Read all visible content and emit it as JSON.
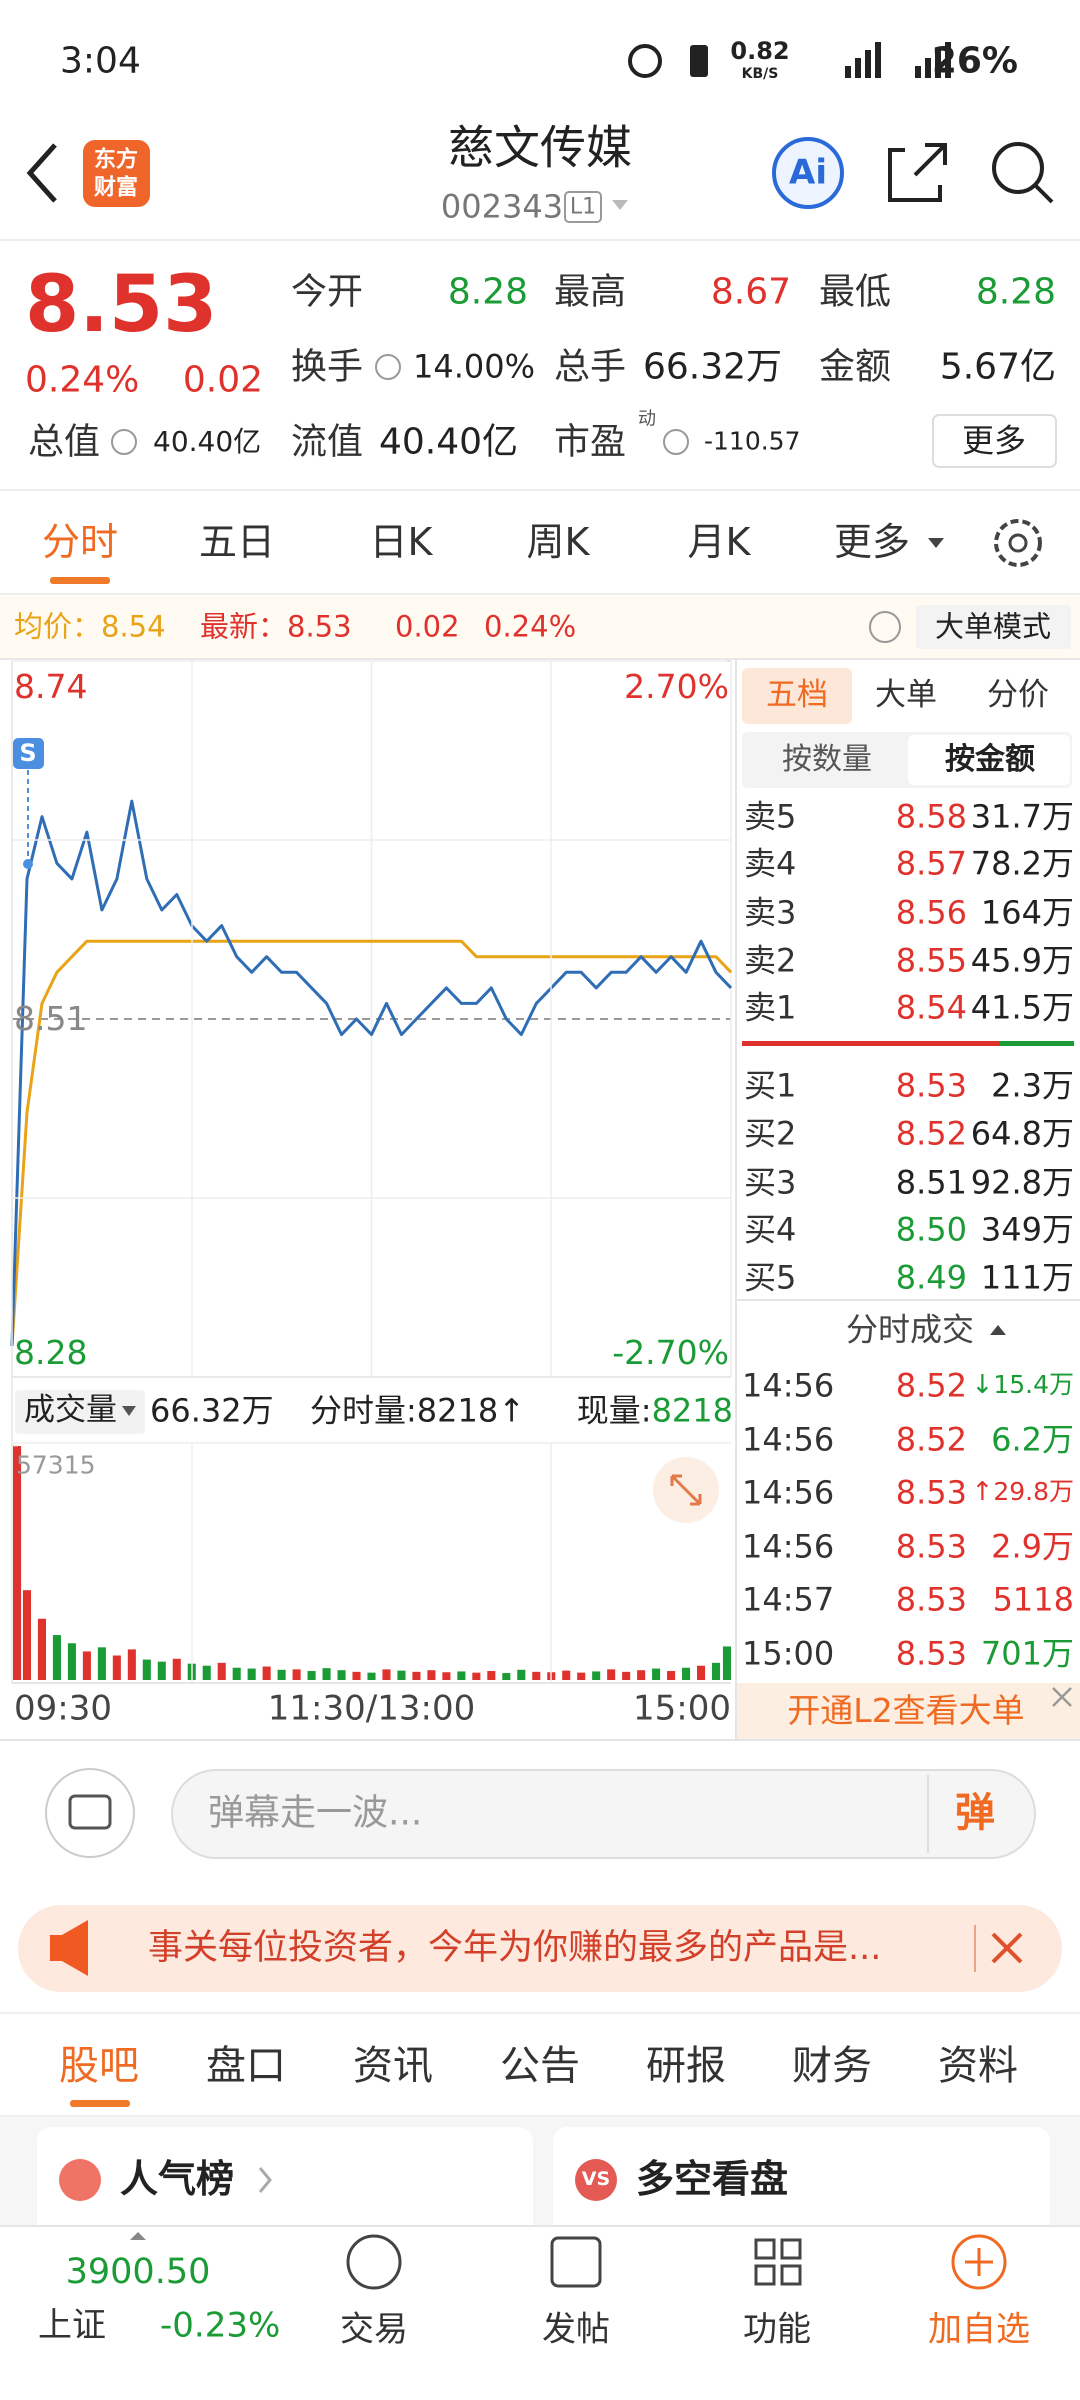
{
  "status": {
    "time": "3:04",
    "net_speed": "0.82",
    "net_unit": "KB/S",
    "battery": "26%"
  },
  "header": {
    "logo": [
      "东方",
      "财富"
    ],
    "title": "慈文传媒",
    "code": "002343",
    "level": "L1",
    "ai": "Ai"
  },
  "quote": {
    "price": "8.53",
    "change_pct": "0.24%",
    "change": "0.02",
    "stats": [
      {
        "label": "今开",
        "value": "8.28"
      },
      {
        "label": "最高",
        "value": "8.67"
      },
      {
        "label": "最低",
        "value": "8.28"
      },
      {
        "label": "换手",
        "value": "14.00%"
      },
      {
        "label": "总手",
        "value": "66.32万"
      },
      {
        "label": "金额",
        "value": "5.67亿"
      },
      {
        "label": "总值",
        "value": "40.40亿"
      },
      {
        "label": "流值",
        "value": "40.40亿"
      },
      {
        "label": "市盈",
        "sup": "动",
        "value": "-110.57"
      }
    ],
    "more": "更多"
  },
  "period_tabs": [
    "分时",
    "五日",
    "日K",
    "周K",
    "月K",
    "更多"
  ],
  "info_bar": {
    "avg_label": "均价：",
    "avg": "8.54",
    "latest_label": "最新：",
    "latest": "8.53",
    "change": "0.02",
    "change_pct": "0.24%",
    "mode": "大单模式"
  },
  "chart_data": [
    {
      "type": "line",
      "annotation": "S",
      "ylim": [
        8.28,
        8.74
      ],
      "yticks": [
        8.28,
        8.51,
        8.74
      ],
      "y2lim": [
        -2.7,
        2.7
      ],
      "y2ticks": [
        {
          "value": -2.7,
          "label": "-2.70%"
        },
        {
          "value": 2.7,
          "label": "2.70%"
        }
      ],
      "xlim": [
        0,
        48
      ],
      "series": [
        {
          "color": "#2f6db5",
          "values": [
            8.3,
            8.6,
            8.64,
            8.61,
            8.6,
            8.63,
            8.58,
            8.6,
            8.65,
            8.6,
            8.58,
            8.59,
            8.57,
            8.56,
            8.57,
            8.55,
            8.54,
            8.55,
            8.54,
            8.54,
            8.53,
            8.52,
            8.5,
            8.51,
            8.5,
            8.52,
            8.5,
            8.51,
            8.52,
            8.53,
            8.52,
            8.52,
            8.53,
            8.51,
            8.5,
            8.52,
            8.53,
            8.54,
            8.54,
            8.53,
            8.54,
            8.54,
            8.55,
            8.54,
            8.55,
            8.54,
            8.56,
            8.54,
            8.53
          ]
        },
        {
          "color": "#e8a317",
          "values": [
            8.3,
            8.45,
            8.52,
            8.54,
            8.55,
            8.56,
            8.56,
            8.56,
            8.56,
            8.56,
            8.56,
            8.56,
            8.56,
            8.56,
            8.56,
            8.56,
            8.56,
            8.56,
            8.56,
            8.56,
            8.56,
            8.56,
            8.56,
            8.56,
            8.56,
            8.56,
            8.56,
            8.56,
            8.56,
            8.56,
            8.56,
            8.55,
            8.55,
            8.55,
            8.55,
            8.55,
            8.55,
            8.55,
            8.55,
            8.55,
            8.55,
            8.55,
            8.55,
            8.55,
            8.55,
            8.55,
            8.55,
            8.55,
            8.54
          ]
        }
      ]
    },
    {
      "type": "bar",
      "ylim": [
        0,
        57315
      ],
      "yticks": [
        57315
      ],
      "xlim": [
        0,
        48
      ],
      "xticks": [
        {
          "value": 0,
          "label": "09:30"
        },
        {
          "value": 24,
          "label": "11:30/13:00"
        },
        {
          "value": 48,
          "label": "15:00"
        }
      ],
      "up_color": "#e0322c",
      "down_color": "#1b9b35",
      "values": [
        57315,
        22000,
        15000,
        11000,
        9000,
        7000,
        8000,
        6000,
        7500,
        5000,
        4500,
        5200,
        4000,
        3500,
        4200,
        3000,
        2800,
        3300,
        2500,
        2600,
        2200,
        2900,
        2400,
        2000,
        1800,
        2600,
        2300,
        2000,
        2400,
        1900,
        2100,
        1800,
        2200,
        1700,
        2500,
        2000,
        1900,
        2300,
        1800,
        2100,
        2600,
        2000,
        2400,
        2800,
        2200,
        3000,
        3500,
        4200,
        8218
      ]
    }
  ],
  "volume_header": {
    "label": "成交量",
    "total": "66.32万",
    "period_label": "分时量:",
    "period_value": "8218",
    "period_arrow": "↑",
    "current_label": "现量:",
    "current_value": "8218"
  },
  "order_book": {
    "tabs": [
      "五档",
      "大单",
      "分价"
    ],
    "sub_tabs": [
      "按数量",
      "按金额"
    ],
    "asks": [
      {
        "label": "卖5",
        "price": "8.58",
        "amount": "31.7万"
      },
      {
        "label": "卖4",
        "price": "8.57",
        "amount": "78.2万"
      },
      {
        "label": "卖3",
        "price": "8.56",
        "amount": "164万"
      },
      {
        "label": "卖2",
        "price": "8.55",
        "amount": "45.9万"
      },
      {
        "label": "卖1",
        "price": "8.54",
        "amount": "41.5万"
      }
    ],
    "bids": [
      {
        "label": "买1",
        "price": "8.53",
        "amount": "2.3万"
      },
      {
        "label": "买2",
        "price": "8.52",
        "amount": "64.8万"
      },
      {
        "label": "买3",
        "price": "8.51",
        "amount": "92.8万"
      },
      {
        "label": "买4",
        "price": "8.50",
        "amount": "349万"
      },
      {
        "label": "买5",
        "price": "8.49",
        "amount": "111万"
      }
    ],
    "trades_title": "分时成交",
    "trades": [
      {
        "time": "14:56",
        "price": "8.52",
        "arrow": "↓",
        "volume": "15.4万",
        "color": "#1b9b35"
      },
      {
        "time": "14:56",
        "price": "8.52",
        "volume": "6.2万",
        "color": "#1b9b35"
      },
      {
        "time": "14:56",
        "price": "8.53",
        "arrow": "↑",
        "volume": "29.8万",
        "color": "#e0322c"
      },
      {
        "time": "14:56",
        "price": "8.53",
        "volume": "2.9万",
        "color": "#e0322c"
      },
      {
        "time": "14:57",
        "price": "8.53",
        "volume": "5118",
        "color": "#e0322c"
      },
      {
        "time": "15:00",
        "price": "8.53",
        "volume": "701万",
        "color": "#1b9b35"
      }
    ],
    "l2_banner": "开通L2查看大单"
  },
  "comment": {
    "placeholder": "弹幕走一波...",
    "button": "弹"
  },
  "notice": {
    "text": "事关每位投资者，今年为你赚的最多的产品是..."
  },
  "section_tabs": [
    "股吧",
    "盘口",
    "资讯",
    "公告",
    "研报",
    "财务",
    "资料"
  ],
  "cards": [
    {
      "title": "人气榜"
    },
    {
      "icon": "VS",
      "title": "多空看盘"
    }
  ],
  "bottom_nav": {
    "index": {
      "value": "3900.50",
      "name": "上证",
      "change": "-0.23%"
    },
    "items": [
      "交易",
      "发帖",
      "功能",
      "加自选"
    ]
  }
}
